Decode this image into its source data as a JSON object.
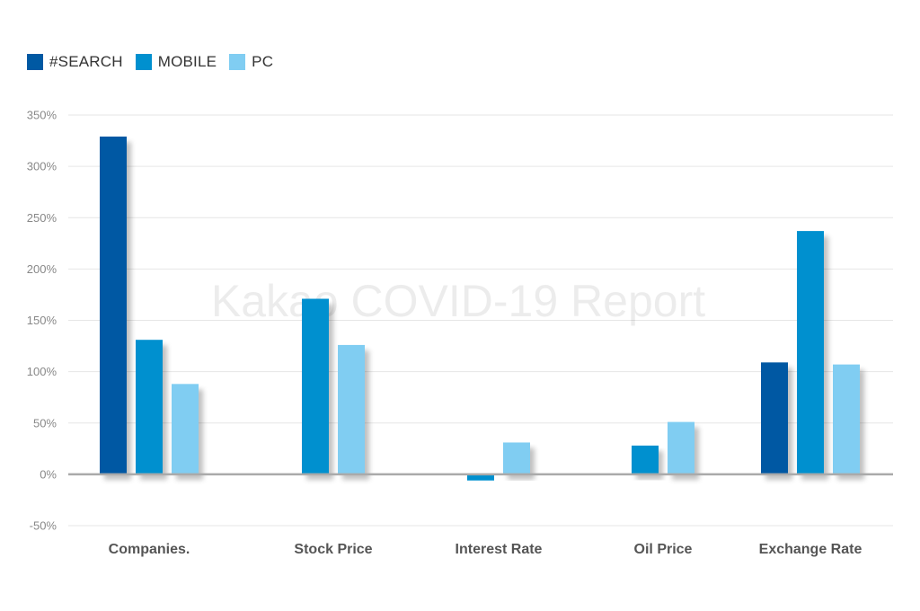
{
  "chart_data": {
    "type": "bar",
    "watermark": "Kakao COVID-19 Report",
    "categories": [
      "Companies.",
      "Stock Price",
      "Interest Rate",
      "Oil Price",
      "Exchange Rate"
    ],
    "series": [
      {
        "name": "#SEARCH",
        "color": "#0059A3",
        "values": [
          329,
          null,
          null,
          null,
          109
        ]
      },
      {
        "name": "MOBILE",
        "color": "#0090CF",
        "values": [
          131,
          171,
          -6,
          28,
          237
        ]
      },
      {
        "name": "PC",
        "color": "#80CDF2",
        "values": [
          88,
          126,
          31,
          51,
          107
        ]
      }
    ],
    "yticks": [
      "350%",
      "300%",
      "250%",
      "200%",
      "150%",
      "100%",
      "50%",
      "0%",
      "-50%"
    ],
    "ylim": [
      -50,
      350
    ],
    "ytick_step": 50,
    "grid": true,
    "legend_position": "top-left",
    "title": "",
    "xlabel": "",
    "ylabel": ""
  }
}
